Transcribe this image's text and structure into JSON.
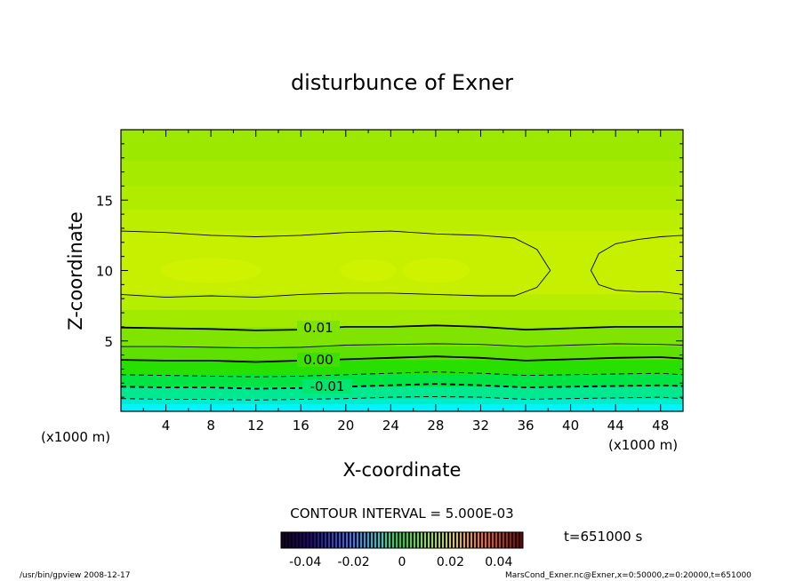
{
  "chart_data": {
    "type": "contour",
    "title": "disturbunce of Exner",
    "xlabel": "X-coordinate",
    "ylabel": "Z-coordinate",
    "x_unit": "(x1000 m)",
    "y_unit": "(x1000 m)",
    "xlim": [
      0,
      50
    ],
    "ylim": [
      0,
      20
    ],
    "x_ticks": [
      4,
      8,
      12,
      16,
      20,
      24,
      28,
      32,
      36,
      40,
      44,
      48
    ],
    "y_ticks": [
      5,
      10,
      15
    ],
    "contour_interval_text": "CONTOUR INTERVAL = 5.000E-03",
    "time_text": "t=651000 s",
    "contour_labels": [
      "0.01",
      "0.00",
      "-0.01"
    ],
    "contour_lines": [
      {
        "level": 0.015,
        "style": "thin-solid",
        "branch": "upper",
        "points": [
          [
            0,
            12.8
          ],
          [
            4,
            12.7
          ],
          [
            8,
            12.5
          ],
          [
            12,
            12.4
          ],
          [
            16,
            12.5
          ],
          [
            20,
            12.7
          ],
          [
            24,
            12.8
          ],
          [
            28,
            12.6
          ],
          [
            32,
            12.5
          ],
          [
            35,
            12.3
          ],
          [
            37,
            11.5
          ],
          [
            38.2,
            10.0
          ]
        ]
      },
      {
        "level": 0.015,
        "style": "thin-solid",
        "branch": "lower",
        "points": [
          [
            38.2,
            10.0
          ],
          [
            37,
            8.8
          ],
          [
            35,
            8.2
          ],
          [
            32,
            8.2
          ],
          [
            28,
            8.3
          ],
          [
            24,
            8.4
          ],
          [
            20,
            8.4
          ],
          [
            16,
            8.3
          ],
          [
            12,
            8.1
          ],
          [
            8,
            8.2
          ],
          [
            4,
            8.1
          ],
          [
            0,
            8.3
          ]
        ]
      },
      {
        "level": 0.015,
        "style": "thin-solid",
        "branch": "right-closed",
        "points": [
          [
            50,
            12.5
          ],
          [
            48,
            12.4
          ],
          [
            46,
            12.2
          ],
          [
            44,
            11.9
          ],
          [
            42.5,
            11.2
          ],
          [
            41.8,
            10.0
          ],
          [
            42.5,
            9.0
          ],
          [
            44,
            8.6
          ],
          [
            46,
            8.5
          ],
          [
            48,
            8.5
          ],
          [
            50,
            8.3
          ]
        ]
      },
      {
        "level": 0.01,
        "style": "thick-solid",
        "points": [
          [
            0,
            5.95
          ],
          [
            4,
            5.9
          ],
          [
            8,
            5.85
          ],
          [
            12,
            5.75
          ],
          [
            16,
            5.8
          ],
          [
            20,
            6.0
          ],
          [
            24,
            6.0
          ],
          [
            28,
            6.1
          ],
          [
            32,
            6.0
          ],
          [
            36,
            5.8
          ],
          [
            40,
            5.9
          ],
          [
            44,
            6.0
          ],
          [
            48,
            6.0
          ],
          [
            50,
            6.0
          ]
        ]
      },
      {
        "level": 0.005,
        "style": "thin-solid",
        "points": [
          [
            0,
            4.6
          ],
          [
            4,
            4.6
          ],
          [
            8,
            4.55
          ],
          [
            12,
            4.5
          ],
          [
            16,
            4.55
          ],
          [
            20,
            4.7
          ],
          [
            24,
            4.75
          ],
          [
            28,
            4.8
          ],
          [
            32,
            4.75
          ],
          [
            36,
            4.6
          ],
          [
            40,
            4.7
          ],
          [
            44,
            4.8
          ],
          [
            48,
            4.75
          ],
          [
            50,
            4.7
          ]
        ]
      },
      {
        "level": 0.0,
        "style": "thick-solid",
        "points": [
          [
            0,
            3.65
          ],
          [
            4,
            3.6
          ],
          [
            8,
            3.6
          ],
          [
            12,
            3.5
          ],
          [
            16,
            3.6
          ],
          [
            20,
            3.7
          ],
          [
            24,
            3.8
          ],
          [
            28,
            3.9
          ],
          [
            32,
            3.8
          ],
          [
            36,
            3.6
          ],
          [
            40,
            3.7
          ],
          [
            44,
            3.8
          ],
          [
            48,
            3.85
          ],
          [
            50,
            3.75
          ]
        ]
      },
      {
        "level": -0.005,
        "style": "thin-dashed",
        "points": [
          [
            0,
            2.6
          ],
          [
            4,
            2.55
          ],
          [
            8,
            2.5
          ],
          [
            12,
            2.45
          ],
          [
            16,
            2.5
          ],
          [
            20,
            2.6
          ],
          [
            24,
            2.7
          ],
          [
            28,
            2.8
          ],
          [
            32,
            2.7
          ],
          [
            36,
            2.55
          ],
          [
            40,
            2.6
          ],
          [
            44,
            2.65
          ],
          [
            48,
            2.7
          ],
          [
            50,
            2.6
          ]
        ]
      },
      {
        "level": -0.01,
        "style": "thick-dashed",
        "points": [
          [
            0,
            1.75
          ],
          [
            4,
            1.7
          ],
          [
            8,
            1.7
          ],
          [
            12,
            1.6
          ],
          [
            16,
            1.65
          ],
          [
            20,
            1.75
          ],
          [
            24,
            1.85
          ],
          [
            28,
            1.95
          ],
          [
            32,
            1.85
          ],
          [
            36,
            1.7
          ],
          [
            40,
            1.75
          ],
          [
            44,
            1.8
          ],
          [
            48,
            1.85
          ],
          [
            50,
            1.8
          ]
        ]
      },
      {
        "level": -0.015,
        "style": "thin-dashed",
        "points": [
          [
            0,
            0.9
          ],
          [
            4,
            0.85
          ],
          [
            8,
            0.85
          ],
          [
            12,
            0.8
          ],
          [
            16,
            0.85
          ],
          [
            20,
            0.9
          ],
          [
            24,
            1.0
          ],
          [
            28,
            1.05
          ],
          [
            32,
            1.0
          ],
          [
            36,
            0.85
          ],
          [
            40,
            0.9
          ],
          [
            44,
            0.95
          ],
          [
            48,
            1.0
          ],
          [
            50,
            0.9
          ]
        ]
      }
    ],
    "fill_bands": [
      {
        "z_top": 20.0,
        "color": "#9ce800"
      },
      {
        "z_top": 17.8,
        "color": "#a6ea00"
      },
      {
        "z_top": 16.0,
        "color": "#b0ec00"
      },
      {
        "z_top": 14.3,
        "color": "#bcee00"
      },
      {
        "z_top": 12.8,
        "color": "#c6f000"
      },
      {
        "z_top": 8.3,
        "color": "#b6ee00"
      },
      {
        "z_top": 7.2,
        "color": "#a2ea00"
      },
      {
        "z_top": 5.95,
        "color": "#7ee400"
      },
      {
        "z_top": 4.6,
        "color": "#5ee000"
      },
      {
        "z_top": 3.65,
        "color": "#28e000"
      },
      {
        "z_top": 2.6,
        "color": "#00e444"
      },
      {
        "z_top": 1.75,
        "color": "#00e890"
      },
      {
        "z_top": 0.9,
        "color": "#00ecd0"
      },
      {
        "z_top": 0.5,
        "color": "#00f4ff"
      }
    ],
    "colorbar": {
      "tick_labels": [
        "-0.04",
        "-0.02",
        "0",
        "0.02",
        "0.04"
      ],
      "range": [
        -0.05,
        0.05
      ]
    }
  },
  "footer": {
    "left": "/usr/bin/gpview   2008-12-17",
    "right": "MarsCond_Exner.nc@Exner,x=0:50000,z=0:20000,t=651000"
  }
}
